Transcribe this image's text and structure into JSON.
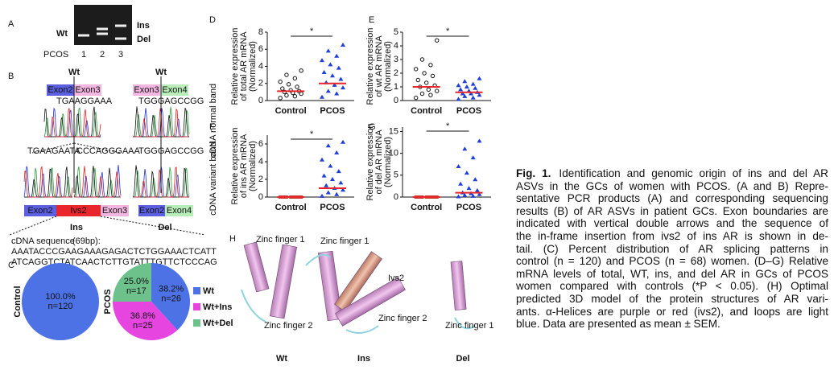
{
  "panel_labels": [
    "A",
    "B",
    "C",
    "D",
    "E",
    "F",
    "G",
    "H"
  ],
  "panel_a": {
    "wt": "Wt",
    "ins": "Ins",
    "del": "Del",
    "lanes_title": "PCOS",
    "lanes": [
      "1",
      "2",
      "3"
    ]
  },
  "panel_b": {
    "top_labels": [
      "Wt",
      "Wt"
    ],
    "top_exons": [
      "Exon2",
      "Exon3",
      "Exon3",
      "Exon4"
    ],
    "sequences": [
      "TGAAGGAAA",
      "TGGGAGCCGG",
      "TGAAGAATA",
      "CCCAGGGAAA",
      "TGGGAGCCGG"
    ],
    "side_labels": [
      "cDNA normal band",
      "cDNA variant band"
    ],
    "ins_bar": [
      "Exon2",
      "Ivs2",
      "Exon3"
    ],
    "del_bar": [
      "Exon2",
      "Exon4"
    ],
    "ins": "Ins",
    "del": "Del",
    "cdna_title": "cDNA sequence",
    "cdna_length": "(69bp):",
    "cdna_lines": [
      "AAATACCCGAAGAAAGAGACTCTGGAAACTCATT",
      "ATCAGGTCTATCAACTCTTGTATTTGTTCTCCCAG"
    ]
  },
  "panel_c": {
    "legend": [
      {
        "name": "Wt",
        "color": "#4d72e6"
      },
      {
        "name": "Wt+Ins",
        "color": "#e645df"
      },
      {
        "name": "Wt+Del",
        "color": "#6dc28c"
      }
    ],
    "pies": [
      {
        "name": "Control",
        "values": [
          100
        ],
        "value_labels": [
          "100.0%"
        ],
        "n_labels": [
          "n=120"
        ]
      },
      {
        "name": "PCOS",
        "values": [
          38.2,
          36.8,
          25
        ],
        "value_labels": [
          "38.2%",
          "36.8%",
          "25.0%"
        ],
        "n_labels": [
          "n=26",
          "n=25",
          "n=17"
        ]
      }
    ]
  },
  "dot_plots": [
    {
      "ylabel": [
        "Relative expression",
        "of total AR mRNA",
        "(Normalized)"
      ],
      "categories": [
        "Control",
        "PCOS"
      ],
      "ylim": [
        0,
        8
      ],
      "yticks": [
        0,
        2,
        4,
        6,
        8
      ],
      "star": "*",
      "groups": [
        {
          "values": [
            0.3,
            0.5,
            0.6,
            0.8,
            0.9,
            1.0,
            1.1,
            1.2,
            1.4,
            1.6,
            1.9,
            2.2,
            2.6,
            3.0,
            3.5
          ],
          "mean": 1.1
        },
        {
          "values": [
            0.4,
            0.8,
            1.1,
            1.5,
            1.8,
            2.1,
            2.5,
            2.9,
            3.3,
            3.8,
            4.2,
            4.7,
            5.2,
            5.8,
            6.5
          ],
          "mean": 2.0
        }
      ]
    },
    {
      "ylabel": [
        "Relative expression",
        "of wt AR mRNA",
        "(Normalized)"
      ],
      "categories": [
        "Control",
        "PCOS"
      ],
      "ylim": [
        0,
        5
      ],
      "yticks": [
        0,
        1,
        2,
        3,
        4,
        5
      ],
      "star": "*",
      "groups": [
        {
          "values": [
            0.2,
            0.4,
            0.5,
            0.7,
            0.8,
            1.0,
            1.1,
            1.3,
            1.5,
            1.8,
            2.0,
            2.3,
            2.6,
            3.0,
            4.4
          ],
          "mean": 1.0
        },
        {
          "values": [
            0.1,
            0.2,
            0.3,
            0.4,
            0.5,
            0.5,
            0.6,
            0.7,
            0.8,
            0.9,
            1.0,
            1.1,
            1.2,
            1.4,
            1.6
          ],
          "mean": 0.6
        }
      ]
    },
    {
      "ylabel": [
        "Relative expression",
        "of ins AR mRNA",
        "(Normalized)"
      ],
      "categories": [
        "Control",
        "PCOS"
      ],
      "ylim": [
        0,
        7
      ],
      "yticks": [
        0,
        2,
        4,
        6
      ],
      "star": "*",
      "groups": [
        {
          "values": [
            0,
            0,
            0,
            0,
            0,
            0,
            0,
            0,
            0,
            0
          ],
          "mean": 0
        },
        {
          "values": [
            0.1,
            0.3,
            0.5,
            0.8,
            1.0,
            1.3,
            1.6,
            2.0,
            2.4,
            2.9,
            3.5,
            4.2,
            5.0,
            5.8,
            6.2
          ],
          "mean": 1.0
        }
      ]
    },
    {
      "ylabel": [
        "Relative expression",
        "of del AR mRNA",
        "(Normalized)"
      ],
      "categories": [
        "Control",
        "PCOS"
      ],
      "ylim": [
        0,
        16
      ],
      "yticks": [
        0,
        5,
        10,
        15
      ],
      "star": "*",
      "groups": [
        {
          "values": [
            0,
            0,
            0,
            0,
            0,
            0,
            0,
            0,
            0,
            0
          ],
          "mean": 0
        },
        {
          "values": [
            0.1,
            0.2,
            0.4,
            0.6,
            0.8,
            1.0,
            1.5,
            2.0,
            3.0,
            4.0,
            5.5,
            7.0,
            9.0,
            11.0,
            12.8
          ],
          "mean": 1.0
        }
      ]
    }
  ],
  "panel_h": {
    "wt": {
      "zf1": "Zinc finger 1",
      "zf2": "Zinc finger 2",
      "name": "Wt"
    },
    "ins": {
      "zf1": "Zinc finger 1",
      "ivs2": "Ivs2",
      "zf2": "Zinc finger 2",
      "name": "Ins"
    },
    "del": {
      "zf1": "Zinc finger 1",
      "name": "Del"
    }
  },
  "caption": {
    "bold": "Fig. 1.",
    "lines": [
      "Identification and genomic origin of ins and del AR",
      "ASVs in the GCs of women with PCOS. (A and B) Repre-",
      "sentative PCR products (A) and corresponding sequencing",
      "results (B) of AR ASVs in patient GCs. Exon boundaries are",
      "indicated with vertical double arrows and the sequence of",
      "the in-frame insertion from ivs2 of ins AR is shown in de-",
      "tail. (C) Percent distribution of AR splicing patterns in",
      "control (n = 120) and PCOS (n = 68) women. (D–G) Relative",
      "mRNA levels of total, WT, ins, and del AR in GCs of PCOS",
      "women compared with controls (*P < 0.05). (H) Optimal",
      "predicted 3D model of the protein structures of AR vari-",
      "ants. α-Helices are purple or red (ivs2), and loops are light",
      "blue. Data are presented as mean ± SEM."
    ]
  }
}
